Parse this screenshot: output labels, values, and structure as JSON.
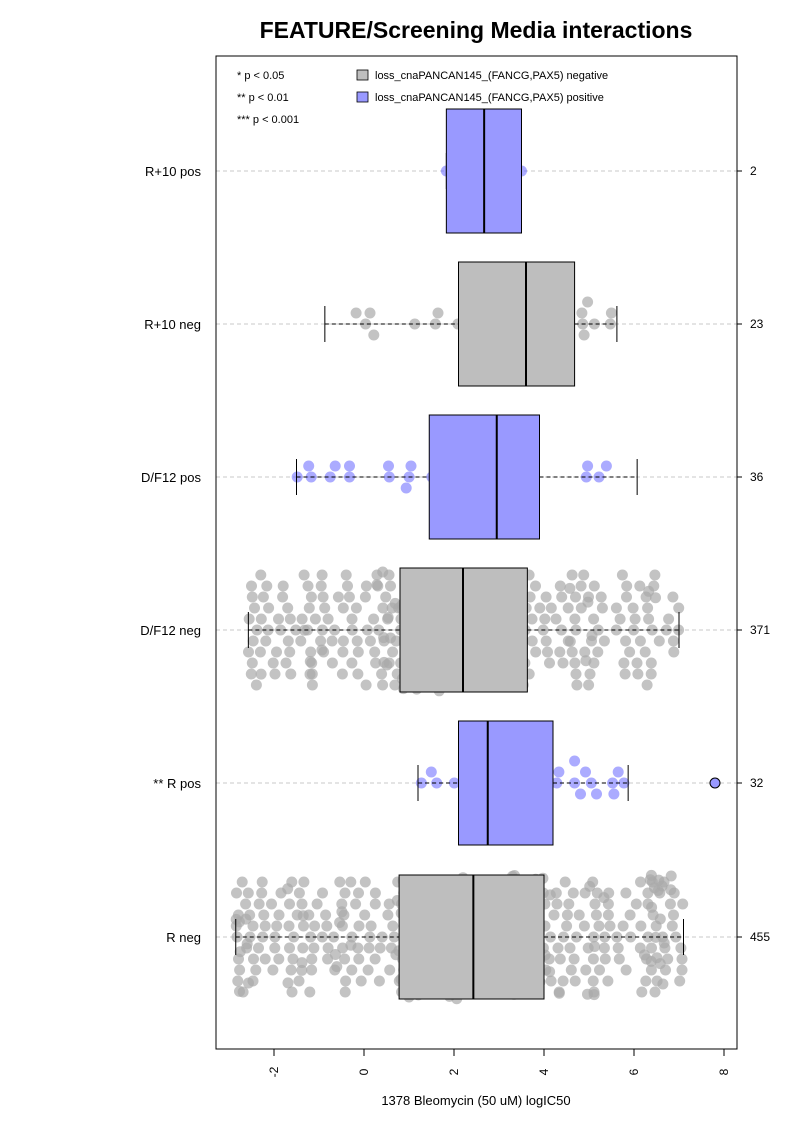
{
  "chart_data": {
    "type": "box+beeswarm",
    "title": "FEATURE/Screening Media interactions",
    "xlabel": "1378 Bleomycin (50 uM) logIC50",
    "ylabel": "",
    "xlim": [
      -3.4,
      8.3
    ],
    "x_ticks": [
      -2,
      0,
      2,
      4,
      6,
      8
    ],
    "x_tick_labels": [
      "-2",
      "0",
      "2",
      "4",
      "6",
      "8"
    ],
    "significance_legend": [
      "* p < 0.05",
      "** p < 0.01",
      "*** p < 0.001"
    ],
    "legend": [
      {
        "label": "loss_cnaPANCAN145_(FANCG,PAX5) negative",
        "color": "#bebebe"
      },
      {
        "label": "loss_cnaPANCAN145_(FANCG,PAX5) positive",
        "color": "#9999ff"
      }
    ],
    "colors": {
      "negative_box": "#bebebe",
      "positive_box": "#9999ff",
      "negative_point": "#aaaaaa",
      "positive_point": "#6666ff",
      "outlier_fill": "#9999ff"
    },
    "categories": [
      {
        "label": "R+10 pos",
        "n": "2",
        "group": "positive",
        "whisker_low": 1.83,
        "q1": 1.83,
        "median": 2.67,
        "q3": 3.5,
        "whisker_high": 3.5,
        "points": 2,
        "outliers": []
      },
      {
        "label": "R+10 neg",
        "n": "23",
        "group": "negative",
        "whisker_low": -0.87,
        "q1": 2.1,
        "median": 3.6,
        "q3": 4.68,
        "whisker_high": 5.62,
        "points": 23,
        "outliers": []
      },
      {
        "label": "D/F12 pos",
        "n": "36",
        "group": "positive",
        "whisker_low": -1.5,
        "q1": 1.45,
        "median": 2.95,
        "q3": 3.9,
        "whisker_high": 6.07,
        "points": 36,
        "outliers": []
      },
      {
        "label": "D/F12 neg",
        "n": "371",
        "group": "negative",
        "whisker_low": -2.57,
        "q1": 0.8,
        "median": 2.2,
        "q3": 3.63,
        "whisker_high": 7.0,
        "points": 371,
        "outliers": []
      },
      {
        "label": "** R pos",
        "n": "32",
        "group": "positive",
        "whisker_low": 1.2,
        "q1": 2.1,
        "median": 2.75,
        "q3": 4.2,
        "whisker_high": 5.87,
        "points": 32,
        "outliers": [
          7.8
        ]
      },
      {
        "label": "R neg",
        "n": "455",
        "group": "negative",
        "whisker_low": -2.85,
        "q1": 0.78,
        "median": 2.43,
        "q3": 4.0,
        "whisker_high": 7.1,
        "points": 455,
        "outliers": []
      }
    ],
    "grid": "dashed horizontal lines at each category",
    "legend_placement": "top"
  }
}
